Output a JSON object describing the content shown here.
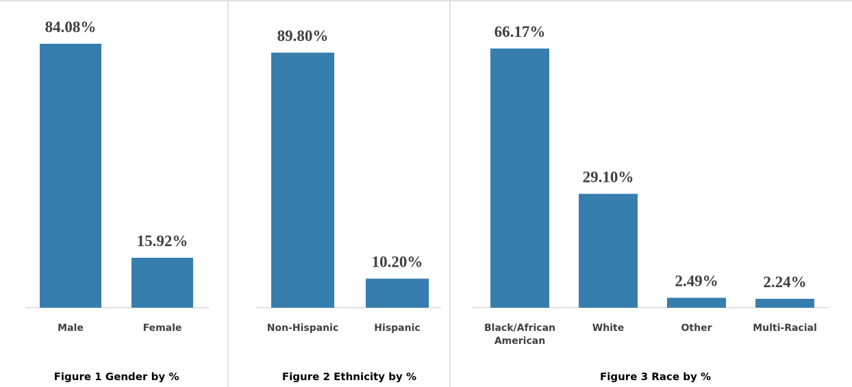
{
  "bar_color": "#357EAD",
  "chart_data": [
    {
      "type": "bar",
      "title": "",
      "caption": "Figure 1 Gender by %",
      "categories": [
        "Male",
        "Female"
      ],
      "values": [
        84.08,
        15.92
      ],
      "value_labels": [
        "84.08%",
        "15.92%"
      ],
      "ylim": [
        0,
        84.08
      ]
    },
    {
      "type": "bar",
      "title": "",
      "caption": "Figure 2 Ethnicity by %",
      "categories": [
        "Non-Hispanic",
        "Hispanic"
      ],
      "values": [
        89.8,
        10.2
      ],
      "value_labels": [
        "89.80%",
        "10.20%"
      ],
      "ylim": [
        0,
        89.8
      ]
    },
    {
      "type": "bar",
      "title": "",
      "caption": "Figure 3 Race by %",
      "categories": [
        "Black/African American",
        "White",
        "Other",
        "Multi-Racial"
      ],
      "category_lines": [
        [
          "Black/African",
          "American"
        ],
        [
          "White"
        ],
        [
          "Other"
        ],
        [
          "Multi-Racial"
        ]
      ],
      "values": [
        66.17,
        29.1,
        2.49,
        2.24
      ],
      "value_labels": [
        "66.17%",
        "29.10%",
        "2.49%",
        "2.24%"
      ],
      "ylim": [
        0,
        66.17
      ]
    }
  ]
}
